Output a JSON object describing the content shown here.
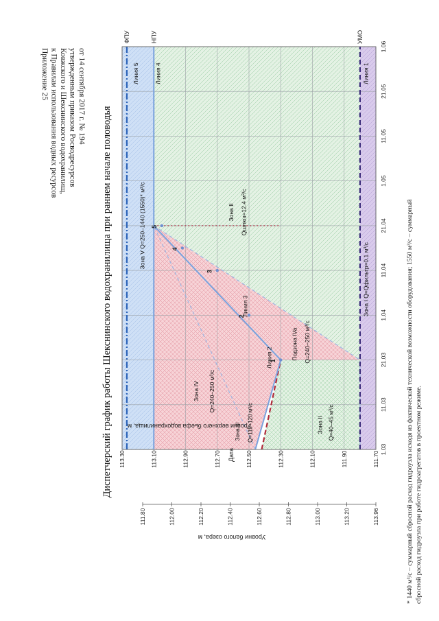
{
  "header": {
    "appendix_lines": [
      "Приложение 25",
      "к Правилам использования водных ресурсов",
      "Ковжского и Шекснинского водохранилищ,",
      "утвержденным приказом Росводресурсов",
      "от 14 сентября 2017 г. № 194"
    ]
  },
  "footnote": {
    "lines": [
      "* 1440 м³/с – суммарный сбросной расход гидроузла исходя из фактической технической возможности оборудования; 1550 м³/с – суммарный",
      "сбросной расход гидроузла при работе гидроагрегатов в проектном режиме."
    ]
  },
  "chart_data": {
    "type": "line",
    "title": "Диспетчерский график работы Шекснинского водохранилища при раннем начале половодья",
    "xlabel": "Дата",
    "ylabel": "Уровни верхнего бьефа водохранилища, м",
    "ylabel2": "Уровни белого озера, м",
    "categories": [
      "1.03",
      "11.03",
      "21.03",
      "1.04",
      "11.04",
      "21.04",
      "1.05",
      "11.05",
      "21.05",
      "1.06"
    ],
    "ylim": [
      111.7,
      113.3
    ],
    "yticks": [
      "111.70",
      "111.90",
      "112.10",
      "112.30",
      "112.50",
      "112.70",
      "112.90",
      "113.10",
      "113.30"
    ],
    "ylim2": [
      111.8,
      113.96
    ],
    "yticks2": [
      "111.80",
      "112.00",
      "112.20",
      "112.40",
      "112.60",
      "112.80",
      "113.00",
      "113.20",
      "113.96"
    ],
    "grid": true,
    "levels": [
      {
        "name": "ФПУ",
        "value": 113.27,
        "color": "#2a62b8",
        "style": "dashdot"
      },
      {
        "name": "НПУ",
        "value": 113.1,
        "color": "#7aa2dd",
        "style": "solid"
      },
      {
        "name": "УМО",
        "value": 111.8,
        "color": "#3a2a7a",
        "style": "dash"
      }
    ],
    "series": [
      {
        "name": "Линия 1",
        "color": "#3a2a7a",
        "style": "dash",
        "x": [
          "1.03",
          "1.06"
        ],
        "y": [
          111.8,
          111.8
        ]
      },
      {
        "name": "Линия 2",
        "color": "#b02a3a",
        "style": "dash",
        "x": [
          "1.03",
          "21.03"
        ],
        "y": [
          112.42,
          112.3
        ]
      },
      {
        "name": "Линия 3",
        "color": "#7aa2dd",
        "style": "solid",
        "x": [
          "1.03",
          "21.03",
          "21.04"
        ],
        "y": [
          112.46,
          112.3,
          113.1
        ]
      },
      {
        "name": "Линия 4",
        "color": "#7aa2dd",
        "style": "solid",
        "x": [
          "1.03",
          "1.06"
        ],
        "y": [
          113.1,
          113.1
        ]
      },
      {
        "name": "Линия 5",
        "color": "#2a62b8",
        "style": "dashdot",
        "x": [
          "1.03",
          "1.06"
        ],
        "y": [
          113.27,
          113.27
        ]
      }
    ],
    "points": [
      {
        "label": "1",
        "x": "21.03",
        "y": 112.3
      },
      {
        "label": "2",
        "x": "1.04",
        "y": 112.5
      },
      {
        "label": "3",
        "x": "11.04",
        "y": 112.7
      },
      {
        "label": "4",
        "x": "16.04",
        "y": 112.92
      },
      {
        "label": "5",
        "x": "21.04",
        "y": 113.05
      }
    ],
    "zones": [
      {
        "name": "Зона V",
        "text": "Зона V  Q=250–1440 (1550)* м³/с",
        "color": "#c9dcf5"
      },
      {
        "name": "Зона IV",
        "text": "Зона IV",
        "q": "Q=240–250 м³/с",
        "color": "#f5c6cc"
      },
      {
        "name": "Подзона IVa",
        "text": "Подзона IVa",
        "q": "Q=240–250 м³/с",
        "color": "#f5c6cc"
      },
      {
        "name": "Зона III",
        "text": "Зона III",
        "q": "Q=115–120 м³/с",
        "color": "#ffffff"
      },
      {
        "name": "Зона II",
        "text": "Зона II",
        "q": "Qшлюз=12.4 м³/с",
        "color": "#d6ecd8"
      },
      {
        "name": "Зона II (нижняя)",
        "text": "Зона II",
        "q": "Q=40–45 м³/с",
        "color": "#d6ecd8"
      },
      {
        "name": "Зона I",
        "text": "Зона I  Q=Qфильтр=0.1 м³/с",
        "color": "#d7c9ea"
      }
    ],
    "line_labels": [
      "Линия 1",
      "Линия 2",
      "Линия 3",
      "Линия 4",
      "Линия 5"
    ]
  }
}
